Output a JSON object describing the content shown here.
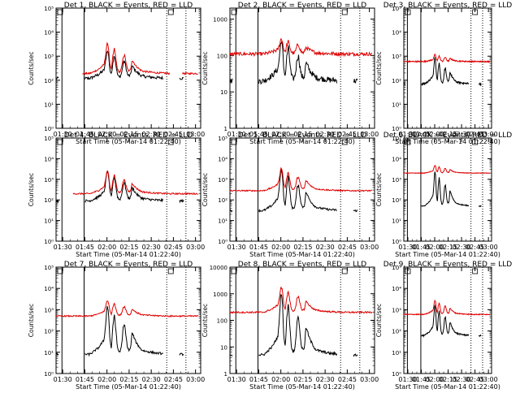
{
  "colors": {
    "events": "#000000",
    "lld": "#e00000",
    "axis": "#000000",
    "background": "#ffffff"
  },
  "time_labels": [
    "01:30",
    "01:45",
    "02:00",
    "02:15",
    "02:30",
    "02:45",
    "03:00"
  ],
  "time_values_min": [
    90,
    105,
    120,
    135,
    150,
    165,
    180
  ],
  "x_range_min": [
    85.5,
    183.5
  ],
  "xlabel": "Start Time (05-Mar-14 01:22:40)",
  "ylabel": "Counts/sec",
  "markers": {
    "solid_lines_min": [
      89.5,
      104.5
    ],
    "dotted_lines_min": [
      160.5,
      173.5
    ],
    "box_label": "N"
  },
  "event_shape": {
    "x_min": [
      106,
      108,
      110,
      112,
      114,
      116,
      118,
      119,
      120,
      121,
      122,
      123,
      124,
      125,
      126,
      127,
      128,
      129,
      130,
      131,
      132,
      133,
      134,
      135,
      136,
      137,
      138,
      139,
      140,
      141,
      142,
      143,
      144,
      146,
      148,
      150,
      152,
      154,
      156,
      158,
      160,
      162,
      164,
      166
    ],
    "rel": [
      0,
      0,
      0.03,
      0.08,
      0.12,
      0.2,
      0.28,
      0.55,
      0.95,
      0.85,
      0.28,
      0.12,
      0.55,
      0.8,
      0.48,
      0.15,
      0.05,
      0.06,
      0.2,
      0.52,
      0.58,
      0.32,
      0.12,
      0.08,
      0.12,
      0.42,
      0.36,
      0.28,
      0.22,
      0.18,
      0.14,
      0.1,
      0.08,
      0.06,
      0.05,
      0.04,
      0.03,
      0.02,
      0.02,
      0.01,
      0.01,
      0.0,
      0.0,
      0.0
    ],
    "segments_min": [
      [
        85.5,
        87.5
      ],
      [
        105,
        158
      ],
      [
        169,
        172
      ]
    ]
  },
  "chart_data": [
    {
      "type": "line",
      "title": "Det 1, BLACK = Events, RED = LLD",
      "ylim": [
        1,
        100000
      ],
      "y_ticks": [
        1,
        10,
        100,
        1000,
        10000,
        100000
      ],
      "y_tick_labels": [
        "10⁰",
        "10¹",
        "10²",
        "10³",
        "10⁴",
        "10⁵"
      ],
      "events_base": 120,
      "events_peak": 2000,
      "lld_base": 190,
      "lld_peak": 4000,
      "lld_segments_min": [
        [
          103,
          162.5
        ],
        [
          171,
          182
        ]
      ],
      "noise": 0.06,
      "series": [
        {
          "name": "Events",
          "color": "#000000"
        },
        {
          "name": "LLD",
          "color": "#e00000"
        }
      ]
    },
    {
      "type": "line",
      "title": "Det 2, BLACK = Events, RED = LLD",
      "ylim": [
        1,
        2000
      ],
      "y_ticks": [
        1,
        10,
        100,
        1000
      ],
      "y_tick_labels": [
        "1",
        "10",
        "100",
        "1000"
      ],
      "events_base": 20,
      "events_peak": 300,
      "lld_base": 110,
      "lld_peak": 300,
      "lld_segments_min": [
        [
          85.5,
          182
        ]
      ],
      "noise": 0.08,
      "series": [
        {
          "name": "Events",
          "color": "#000000"
        },
        {
          "name": "LLD",
          "color": "#e00000"
        }
      ]
    },
    {
      "type": "line",
      "title": "Det 3, BLACK = Events, RED = LLD",
      "ylim": [
        1,
        100000
      ],
      "y_ticks": [
        1,
        10,
        100,
        1000,
        10000,
        100000
      ],
      "y_tick_labels": [
        "10⁰",
        "10¹",
        "10²",
        "10³",
        "10⁴",
        "10⁵"
      ],
      "events_base": 70,
      "events_peak": 1000,
      "lld_base": 600,
      "lld_peak": 1200,
      "lld_segments_min": [
        [
          85.5,
          182
        ]
      ],
      "noise": 0.04,
      "series": [
        {
          "name": "Events",
          "color": "#000000"
        },
        {
          "name": "LLD",
          "color": "#e00000"
        }
      ]
    },
    {
      "type": "line",
      "title": "Det 4, BLACK = Events, RED = LLD",
      "ylim": [
        1,
        100000
      ],
      "y_ticks": [
        1,
        10,
        100,
        1000,
        10000,
        100000
      ],
      "y_tick_labels": [
        "10⁰",
        "10¹",
        "10²",
        "10³",
        "10⁴",
        "10⁵"
      ],
      "events_base": 90,
      "events_peak": 3000,
      "lld_base": 200,
      "lld_peak": 3000,
      "lld_segments_min": [
        [
          97,
          182
        ]
      ],
      "noise": 0.06,
      "series": [
        {
          "name": "Events",
          "color": "#000000"
        },
        {
          "name": "LLD",
          "color": "#e00000"
        }
      ]
    },
    {
      "type": "line",
      "title": "Det 5, BLACK = Events, RED = LLD",
      "ylim": [
        1,
        100000
      ],
      "y_ticks": [
        1,
        10,
        100,
        1000,
        10000,
        100000
      ],
      "y_tick_labels": [
        "10⁰",
        "10¹",
        "10²",
        "10³",
        "10⁴",
        "10⁵"
      ],
      "events_base": 30,
      "events_peak": 4000,
      "lld_base": 280,
      "lld_peak": 4000,
      "lld_segments_min": [
        [
          85.5,
          182
        ]
      ],
      "noise": 0.05,
      "series": [
        {
          "name": "Events",
          "color": "#000000"
        },
        {
          "name": "LLD",
          "color": "#e00000"
        }
      ]
    },
    {
      "type": "line",
      "title": "Det 6, BLACK = Events, RED = LLD",
      "ylim": [
        1,
        100000
      ],
      "y_ticks": [
        1,
        10,
        100,
        1000,
        10000,
        100000
      ],
      "y_tick_labels": [
        "10⁰",
        "10¹",
        "10²",
        "10³",
        "10⁴",
        "10⁵"
      ],
      "events_base": 50,
      "events_peak": 3000,
      "lld_base": 2000,
      "lld_peak": 5000,
      "lld_segments_min": [
        [
          85.5,
          182
        ]
      ],
      "noise": 0.02,
      "series": [
        {
          "name": "Events",
          "color": "#000000"
        },
        {
          "name": "LLD",
          "color": "#e00000"
        }
      ]
    },
    {
      "type": "line",
      "title": "Det 7, BLACK = Events, RED = LLD",
      "ylim": [
        1,
        100000
      ],
      "y_ticks": [
        1,
        10,
        100,
        1000,
        10000,
        100000
      ],
      "y_tick_labels": [
        "10⁰",
        "10¹",
        "10²",
        "10³",
        "10⁴",
        "10⁵"
      ],
      "events_base": 8,
      "events_peak": 2000,
      "lld_base": 500,
      "lld_peak": 3000,
      "lld_segments_min": [
        [
          85.5,
          182
        ]
      ],
      "noise": 0.05,
      "series": [
        {
          "name": "Events",
          "color": "#000000"
        },
        {
          "name": "LLD",
          "color": "#e00000"
        }
      ]
    },
    {
      "type": "line",
      "title": "Det 8, BLACK = Events, RED = LLD",
      "ylim": [
        1,
        10000
      ],
      "y_ticks": [
        1,
        10,
        100,
        1000,
        10000
      ],
      "y_tick_labels": [
        "1",
        "10",
        "100",
        "1000",
        "10000"
      ],
      "events_base": 5,
      "events_peak": 1500,
      "lld_base": 200,
      "lld_peak": 2000,
      "lld_segments_min": [
        [
          85.5,
          182
        ]
      ],
      "noise": 0.05,
      "series": [
        {
          "name": "Events",
          "color": "#000000"
        },
        {
          "name": "LLD",
          "color": "#e00000"
        }
      ]
    },
    {
      "type": "line",
      "title": "Det 9, BLACK = Events, RED = LLD",
      "ylim": [
        1,
        100000
      ],
      "y_ticks": [
        1,
        10,
        100,
        1000,
        10000,
        100000
      ],
      "y_tick_labels": [
        "10⁰",
        "10¹",
        "10²",
        "10³",
        "10⁴",
        "10⁵"
      ],
      "events_base": 60,
      "events_peak": 2000,
      "lld_base": 600,
      "lld_peak": 3000,
      "lld_segments_min": [
        [
          85.5,
          182
        ]
      ],
      "noise": 0.03,
      "series": [
        {
          "name": "Events",
          "color": "#000000"
        },
        {
          "name": "LLD",
          "color": "#e00000"
        }
      ]
    }
  ]
}
